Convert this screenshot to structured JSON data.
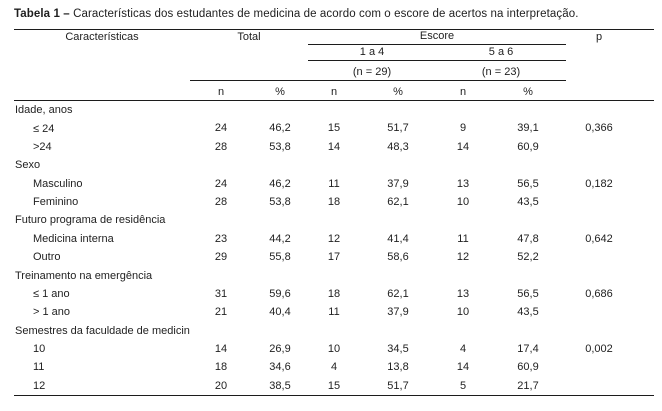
{
  "title": {
    "prefix": "Tabela 1 –",
    "text": "Características dos estudantes de medicina de acordo com o escore de acertos na interpretação."
  },
  "table": {
    "header": {
      "caracteristicas": "Características",
      "total": "Total",
      "escore": "Escore",
      "p": "p",
      "group1": "1 a 4",
      "group2": "5 a 6",
      "group1_n": "(n = 29)",
      "group2_n": "(n = 23)",
      "n": "n",
      "pct": "%"
    },
    "rows": [
      {
        "type": "section",
        "label": "Idade, anos"
      },
      {
        "type": "item",
        "label": "≤ 24",
        "total_n": "24",
        "total_pct": "46,2",
        "e1_n": "15",
        "e1_pct": "51,7",
        "e2_n": "9",
        "e2_pct": "39,1",
        "p": "0,366"
      },
      {
        "type": "item",
        "label": ">24",
        "total_n": "28",
        "total_pct": "53,8",
        "e1_n": "14",
        "e1_pct": "48,3",
        "e2_n": "14",
        "e2_pct": "60,9"
      },
      {
        "type": "section",
        "label": "Sexo"
      },
      {
        "type": "item",
        "label": "Masculino",
        "total_n": "24",
        "total_pct": "46,2",
        "e1_n": "11",
        "e1_pct": "37,9",
        "e2_n": "13",
        "e2_pct": "56,5",
        "p": "0,182"
      },
      {
        "type": "item",
        "label": "Feminino",
        "total_n": "28",
        "total_pct": "53,8",
        "e1_n": "18",
        "e1_pct": "62,1",
        "e2_n": "10",
        "e2_pct": "43,5"
      },
      {
        "type": "section",
        "label": "Futuro programa de residência"
      },
      {
        "type": "item",
        "label": "Medicina interna",
        "total_n": "23",
        "total_pct": "44,2",
        "e1_n": "12",
        "e1_pct": "41,4",
        "e2_n": "11",
        "e2_pct": "47,8",
        "p": "0,642"
      },
      {
        "type": "item",
        "label": "Outro",
        "total_n": "29",
        "total_pct": "55,8",
        "e1_n": "17",
        "e1_pct": "58,6",
        "e2_n": "12",
        "e2_pct": "52,2"
      },
      {
        "type": "section",
        "label": "Treinamento na emergência"
      },
      {
        "type": "item",
        "label": "≤ 1 ano",
        "total_n": "31",
        "total_pct": "59,6",
        "e1_n": "18",
        "e1_pct": "62,1",
        "e2_n": "13",
        "e2_pct": "56,5",
        "p": "0,686"
      },
      {
        "type": "item",
        "label": "> 1 ano",
        "total_n": "21",
        "total_pct": "40,4",
        "e1_n": "11",
        "e1_pct": "37,9",
        "e2_n": "10",
        "e2_pct": "43,5"
      },
      {
        "type": "section",
        "label": "Semestres da faculdade de medicina"
      },
      {
        "type": "item",
        "label": "10",
        "total_n": "14",
        "total_pct": "26,9",
        "e1_n": "10",
        "e1_pct": "34,5",
        "e2_n": "4",
        "e2_pct": "17,4",
        "p": "0,002"
      },
      {
        "type": "item",
        "label": "11",
        "total_n": "18",
        "total_pct": "34,6",
        "e1_n": "4",
        "e1_pct": "13,8",
        "e2_n": "14",
        "e2_pct": "60,9"
      },
      {
        "type": "item",
        "label": "12",
        "total_n": "20",
        "total_pct": "38,5",
        "e1_n": "15",
        "e1_pct": "51,7",
        "e2_n": "5",
        "e2_pct": "21,7"
      }
    ]
  }
}
